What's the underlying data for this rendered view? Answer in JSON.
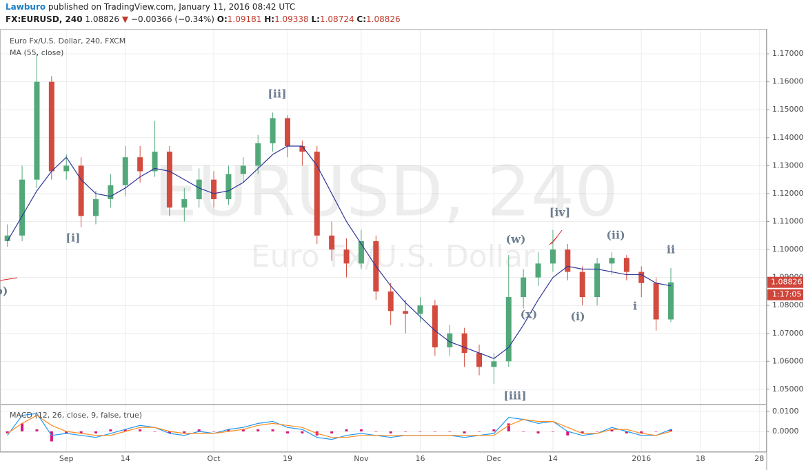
{
  "header": {
    "author": "Lawburo",
    "published": "published on TradingView.com, January 11, 2016 08:42 UTC",
    "symbol": "FX:EURUSD, 240",
    "last": "1.08826",
    "arrow": "▼",
    "change": "−0.00366 (−0.34%)",
    "o_label": "O:",
    "o": "1.09181",
    "h_label": "H:",
    "h": "1.09338",
    "l_label": "L:",
    "l": "1.08724",
    "c_label": "C:",
    "c": "1.08826"
  },
  "chart_data": [
    {
      "type": "candlestick",
      "title": "Euro Fx/U.S. Dollar, 240, FXCM",
      "indicator": "MA (55, close)",
      "watermark": "EURUSD, 240",
      "watermark_subtitle": "Euro Fx/U.S. Dollar",
      "categories": [
        null,
        null,
        null,
        null,
        "Sep",
        null,
        null,
        null,
        "14",
        null,
        null,
        null,
        null,
        null,
        "Oct",
        null,
        null,
        null,
        null,
        "19",
        null,
        null,
        null,
        null,
        "Nov",
        null,
        null,
        null,
        "16",
        null,
        null,
        null,
        null,
        "Dec",
        null,
        null,
        null,
        "14",
        null,
        null,
        null,
        null,
        null,
        "2016",
        null,
        null,
        null,
        "18",
        null,
        null,
        null,
        "28"
      ],
      "open": [
        1.103,
        1.105,
        1.125,
        1.16,
        1.128,
        1.13,
        1.112,
        1.118,
        1.123,
        1.133,
        1.128,
        1.135,
        1.115,
        1.118,
        1.125,
        1.118,
        1.127,
        1.13,
        1.138,
        1.147,
        1.137,
        1.135,
        1.105,
        1.1,
        1.095,
        1.103,
        1.085,
        1.078,
        1.077,
        1.08,
        1.065,
        1.07,
        1.063,
        1.058,
        1.06,
        1.083,
        1.09,
        1.095,
        1.1,
        1.092,
        1.083,
        1.095,
        1.097,
        1.092,
        1.088,
        1.075,
        null,
        null,
        null,
        null,
        null,
        null
      ],
      "high": [
        1.109,
        1.13,
        1.17,
        1.162,
        1.134,
        1.133,
        1.121,
        1.127,
        1.137,
        1.137,
        1.146,
        1.137,
        1.122,
        1.129,
        1.128,
        1.13,
        1.133,
        1.141,
        1.149,
        1.148,
        1.139,
        1.137,
        1.11,
        1.104,
        1.107,
        1.105,
        1.088,
        1.082,
        1.083,
        1.082,
        1.073,
        1.072,
        1.066,
        1.063,
        1.098,
        1.093,
        1.099,
        1.107,
        1.102,
        1.094,
        1.097,
        1.099,
        1.098,
        1.094,
        1.09,
        1.09338,
        null,
        null,
        null,
        null,
        null,
        null
      ],
      "low": [
        1.101,
        1.103,
        1.122,
        1.125,
        1.125,
        1.108,
        1.109,
        1.115,
        1.119,
        1.124,
        1.126,
        1.112,
        1.11,
        1.115,
        1.115,
        1.116,
        1.124,
        1.127,
        1.135,
        1.133,
        1.13,
        1.102,
        1.096,
        1.09,
        1.093,
        1.082,
        1.073,
        1.07,
        1.074,
        1.062,
        1.062,
        1.058,
        1.055,
        1.052,
        1.058,
        1.079,
        1.087,
        1.092,
        1.089,
        1.08,
        1.08,
        1.091,
        1.089,
        1.083,
        1.071,
        1.074,
        null,
        null,
        null,
        null,
        null,
        null
      ],
      "close": [
        1.105,
        1.125,
        1.16,
        1.128,
        1.13,
        1.112,
        1.118,
        1.123,
        1.133,
        1.128,
        1.135,
        1.115,
        1.118,
        1.125,
        1.118,
        1.127,
        1.13,
        1.138,
        1.147,
        1.137,
        1.135,
        1.105,
        1.1,
        1.095,
        1.103,
        1.085,
        1.078,
        1.077,
        1.08,
        1.065,
        1.07,
        1.063,
        1.058,
        1.06,
        1.083,
        1.09,
        1.095,
        1.1,
        1.092,
        1.083,
        1.095,
        1.097,
        1.092,
        1.088,
        1.075,
        1.08826,
        null,
        null,
        null,
        null,
        null,
        null
      ],
      "up_color": "#53a87a",
      "down_color": "#d24b3e",
      "series": [
        {
          "name": "MA (55, close)",
          "color": "#2f3596",
          "values": [
            1.103,
            1.112,
            1.121,
            1.128,
            1.133,
            1.125,
            1.12,
            1.119,
            1.122,
            1.126,
            1.129,
            1.128,
            1.125,
            1.122,
            1.12,
            1.121,
            1.124,
            1.129,
            1.134,
            1.137,
            1.137,
            1.13,
            1.12,
            1.11,
            1.102,
            1.094,
            1.087,
            1.081,
            1.076,
            1.071,
            1.067,
            1.065,
            1.063,
            1.061,
            1.065,
            1.073,
            1.082,
            1.09,
            1.094,
            1.093,
            1.093,
            1.092,
            1.091,
            1.091,
            1.088,
            1.087,
            null,
            null,
            null,
            null,
            null,
            null
          ]
        }
      ],
      "last_price": 1.08826,
      "countdown": "1:17:05",
      "annotations": [
        "[ii]",
        "[i]",
        "[iii]",
        "[iv]",
        "(w)",
        "(x)",
        "(i)",
        "(ii)",
        "i",
        "ii",
        "b)"
      ],
      "ylim": [
        1.0448,
        1.1789
      ],
      "yticks": [
        {
          "value": 1.05,
          "label": "1.05000"
        },
        {
          "value": 1.06,
          "label": "1.06000"
        },
        {
          "value": 1.07,
          "label": "1.07000"
        },
        {
          "value": 1.08,
          "label": "1.08000"
        },
        {
          "value": 1.09,
          "label": "1.09000"
        },
        {
          "value": 1.1,
          "label": "1.10000"
        },
        {
          "value": 1.11,
          "label": "1.11000"
        },
        {
          "value": 1.12,
          "label": "1.12000"
        },
        {
          "value": 1.13,
          "label": "1.13000"
        },
        {
          "value": 1.14,
          "label": "1.14000"
        },
        {
          "value": 1.15,
          "label": "1.15000"
        },
        {
          "value": 1.16,
          "label": "1.16000"
        },
        {
          "value": 1.17,
          "label": "1.17000"
        }
      ],
      "grid": true
    },
    {
      "type": "macd",
      "title": "MACD (12, 26, close, 9, false, true)",
      "series": [
        {
          "name": "MACD",
          "color": "#2196f3",
          "values": [
            -0.002,
            0.008,
            0.009,
            -0.002,
            -0.001,
            -0.002,
            -0.003,
            -0.001,
            0.001,
            0.003,
            0.002,
            -0.001,
            -0.002,
            0.0,
            -0.001,
            0.001,
            0.002,
            0.004,
            0.005,
            0.002,
            0.001,
            -0.003,
            -0.004,
            -0.002,
            -0.001,
            -0.002,
            -0.003,
            -0.002,
            -0.002,
            -0.002,
            -0.002,
            -0.003,
            -0.002,
            -0.001,
            0.007,
            0.006,
            0.004,
            0.005,
            0.0,
            -0.002,
            -0.001,
            0.002,
            0.0,
            -0.002,
            -0.002,
            0.001,
            null,
            null,
            null,
            null,
            null,
            null
          ]
        },
        {
          "name": "Signal",
          "color": "#ff8a1c",
          "values": [
            -0.001,
            0.004,
            0.008,
            0.003,
            0.0,
            -0.001,
            -0.002,
            -0.002,
            0.0,
            0.002,
            0.002,
            0.0,
            -0.001,
            -0.001,
            -0.001,
            0.0,
            0.001,
            0.003,
            0.004,
            0.003,
            0.002,
            -0.001,
            -0.003,
            -0.003,
            -0.002,
            -0.002,
            -0.002,
            -0.002,
            -0.002,
            -0.002,
            -0.002,
            -0.002,
            -0.002,
            -0.002,
            0.003,
            0.006,
            0.005,
            0.005,
            0.002,
            -0.001,
            -0.001,
            0.001,
            0.001,
            -0.001,
            -0.002,
            0.0,
            null,
            null,
            null,
            null,
            null,
            null
          ]
        }
      ],
      "histogram": {
        "name": "Histogram",
        "color": "#d6157a",
        "values": [
          -0.001,
          0.004,
          0.001,
          -0.005,
          -0.001,
          -0.001,
          -0.001,
          0.001,
          0.001,
          0.001,
          0.0,
          -0.001,
          -0.001,
          0.001,
          0.0,
          0.001,
          0.001,
          0.001,
          0.001,
          -0.001,
          -0.001,
          -0.002,
          -0.001,
          0.001,
          0.001,
          0.0,
          -0.001,
          0.0,
          0.0,
          0.0,
          0.0,
          -0.001,
          0.0,
          0.001,
          0.004,
          0.0,
          -0.001,
          0.0,
          -0.002,
          -0.001,
          0.0,
          0.001,
          -0.001,
          -0.001,
          0.0,
          0.001,
          null,
          null,
          null,
          null,
          null,
          null
        ]
      },
      "ylim": [
        -0.01,
        0.0131
      ],
      "yticks": [
        {
          "value": 0,
          "label": "0.0000"
        },
        {
          "value": 0.01,
          "label": "0.0100"
        }
      ],
      "grid": true
    }
  ]
}
